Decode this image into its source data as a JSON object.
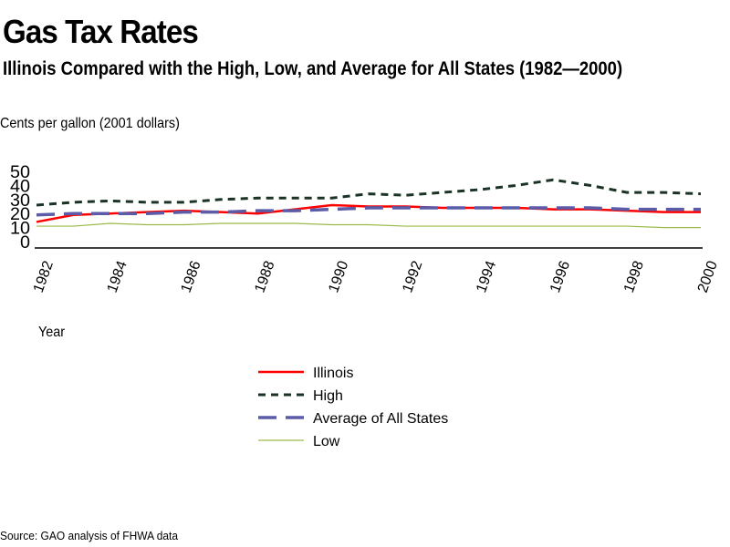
{
  "chart_data": {
    "type": "line",
    "title": "Gas Tax Rates",
    "subtitle": "Illinois Compared with the High, Low, and Average for All States (1982—2000)",
    "ylabel": "Cents per gallon (2001 dollars)",
    "xlabel": "Year",
    "source": "Source: GAO analysis of FHWA data",
    "ylim": [
      0,
      50
    ],
    "yticks": [
      "0",
      "10",
      "20",
      "30",
      "40",
      "50"
    ],
    "xticks": [
      "1982",
      "1984",
      "1986",
      "1988",
      "1990",
      "1992",
      "1994",
      "1996",
      "1998",
      "2000"
    ],
    "grid": false,
    "legend_position": "bottom-center",
    "x": [
      1982,
      1983,
      1984,
      1985,
      1986,
      1987,
      1988,
      1989,
      1990,
      1991,
      1992,
      1993,
      1994,
      1995,
      1996,
      1997,
      1998,
      1999,
      2000
    ],
    "series": [
      {
        "name": "Illinois",
        "color": "#ff0000",
        "style": "solid",
        "values": [
          14,
          19,
          20,
          21,
          22,
          21,
          20,
          23,
          26,
          25,
          25,
          24,
          24,
          24,
          23,
          23,
          22,
          21,
          21
        ]
      },
      {
        "name": "High",
        "color": "#1a3324",
        "style": "dotted-dash",
        "values": [
          26,
          28,
          29,
          28,
          28,
          30,
          31,
          31,
          31,
          34,
          33,
          35,
          37,
          40,
          44,
          40,
          35,
          35,
          34
        ]
      },
      {
        "name": "Average of All States",
        "color": "#5b5ba8",
        "style": "long-dash",
        "values": [
          19,
          20,
          20,
          20,
          21,
          21,
          22,
          22,
          23,
          24,
          24,
          24,
          24,
          24,
          24,
          24,
          23,
          23,
          23
        ]
      },
      {
        "name": "Low",
        "color": "#9aba48",
        "style": "solid-thin",
        "values": [
          11,
          11,
          13,
          12,
          12,
          13,
          13,
          13,
          12,
          12,
          11,
          11,
          11,
          11,
          11,
          11,
          11,
          10,
          10
        ]
      }
    ]
  }
}
